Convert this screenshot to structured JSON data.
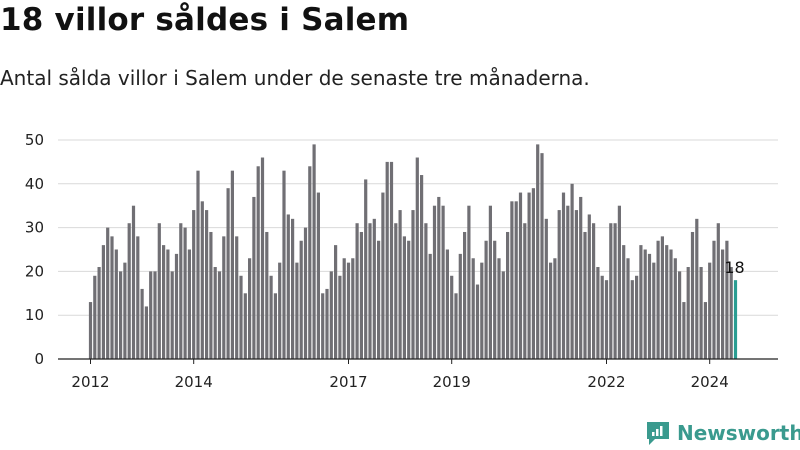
{
  "title": "18 villor såldes i Salem",
  "subtitle": "Antal sålda villor i Salem under de senaste tre månaderna.",
  "brand": {
    "name": "Newsworthy",
    "icon": "newsworthy-logo-icon",
    "color": "#3a9a8e"
  },
  "colors": {
    "bar": "#706f74",
    "highlight": "#2a9d92"
  },
  "chart_data": {
    "type": "bar",
    "title": "18 villor såldes i Salem",
    "xlabel": "",
    "ylabel": "",
    "ylim": [
      0,
      50
    ],
    "yticks": [
      0,
      10,
      20,
      30,
      40,
      50
    ],
    "xticks": [
      {
        "label": "2012",
        "index": 0
      },
      {
        "label": "2014",
        "index": 24
      },
      {
        "label": "2017",
        "index": 60
      },
      {
        "label": "2019",
        "index": 84
      },
      {
        "label": "2022",
        "index": 120
      },
      {
        "label": "2024",
        "index": 144
      }
    ],
    "grid": true,
    "highlight_index": 150,
    "highlight_label": "18",
    "values": [
      13,
      19,
      21,
      26,
      30,
      28,
      25,
      20,
      22,
      31,
      35,
      28,
      16,
      12,
      20,
      20,
      31,
      26,
      25,
      20,
      24,
      31,
      30,
      25,
      34,
      43,
      36,
      34,
      29,
      21,
      20,
      28,
      39,
      43,
      28,
      19,
      15,
      23,
      37,
      44,
      46,
      29,
      19,
      15,
      22,
      43,
      33,
      32,
      22,
      27,
      30,
      44,
      49,
      38,
      15,
      16,
      20,
      26,
      19,
      23,
      22,
      23,
      31,
      29,
      41,
      31,
      32,
      27,
      38,
      45,
      45,
      31,
      34,
      28,
      27,
      34,
      46,
      42,
      31,
      24,
      35,
      37,
      35,
      25,
      19,
      15,
      24,
      29,
      35,
      23,
      17,
      22,
      27,
      35,
      27,
      23,
      20,
      29,
      36,
      36,
      38,
      31,
      38,
      39,
      49,
      47,
      32,
      22,
      23,
      34,
      38,
      35,
      40,
      34,
      37,
      29,
      33,
      31,
      21,
      19,
      18,
      31,
      31,
      35,
      26,
      23,
      18,
      19,
      26,
      25,
      24,
      22,
      27,
      28,
      26,
      25,
      23,
      20,
      13,
      21,
      29,
      32,
      21,
      13,
      22,
      27,
      31,
      25,
      27,
      21,
      18
    ]
  }
}
